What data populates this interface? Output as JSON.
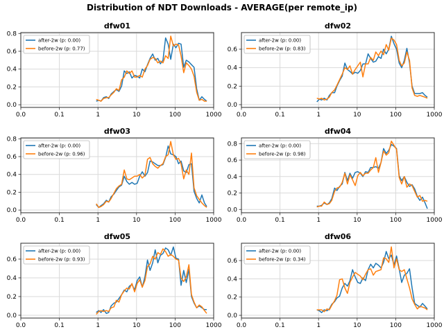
{
  "figure": {
    "title": "Distribution of NDT Downloads - AVERAGE(per remote_ip)",
    "background": "#ffffff"
  },
  "colors": {
    "after": "#1f77b4",
    "before": "#ff7f0e",
    "grid": "#d9d9d9",
    "spine": "#2b2b2b",
    "text": "#000000"
  },
  "chart_data": {
    "type": "line",
    "layout": "3x2-grid",
    "xscale": "symlog",
    "grid": true,
    "legend_position": "upper left",
    "x_tick_labels": [
      "0.0",
      "0.1",
      "1",
      "10",
      "100",
      "1000"
    ],
    "x_values": [
      0.9,
      1.05,
      1.2,
      1.4,
      1.65,
      1.9,
      2.2,
      2.6,
      3.0,
      3.5,
      4.1,
      4.8,
      5.6,
      6.5,
      7.6,
      8.9,
      10.4,
      12.1,
      14.1,
      16.5,
      19.2,
      22.4,
      26.2,
      30.5,
      35.6,
      41.6,
      48.5,
      56.6,
      66.1,
      77.1,
      90,
      105,
      123,
      143,
      167,
      195,
      228,
      266,
      310,
      362,
      423,
      494,
      576,
      660
    ],
    "subplots": [
      {
        "title": "dfw01",
        "y_ticks": [
          "0.0",
          "0.2",
          "0.4",
          "0.6",
          "0.8"
        ],
        "ylim": [
          -0.03,
          0.81
        ],
        "series": [
          {
            "name": "after-2w (p: 0.00)",
            "color": "#1f77b4",
            "y": [
              0.04,
              0.05,
              0.04,
              0.08,
              0.09,
              0.07,
              0.12,
              0.15,
              0.17,
              0.15,
              0.21,
              0.38,
              0.35,
              0.37,
              0.3,
              0.33,
              0.32,
              0.3,
              0.4,
              0.37,
              0.45,
              0.52,
              0.57,
              0.5,
              0.52,
              0.46,
              0.5,
              0.75,
              0.68,
              0.51,
              0.68,
              0.64,
              0.69,
              0.68,
              0.42,
              0.5,
              0.48,
              0.45,
              0.42,
              0.18,
              0.05,
              0.09,
              0.06,
              0.04
            ]
          },
          {
            "name": "before-2w (p: 0.77)",
            "color": "#ff7f0e",
            "y": [
              0.06,
              0.05,
              0.04,
              0.07,
              0.08,
              0.08,
              0.11,
              0.14,
              0.18,
              0.16,
              0.28,
              0.31,
              0.38,
              0.35,
              0.38,
              0.31,
              0.31,
              0.33,
              0.31,
              0.4,
              0.44,
              0.51,
              0.53,
              0.52,
              0.47,
              0.49,
              0.47,
              0.55,
              0.52,
              0.77,
              0.66,
              0.68,
              0.67,
              0.55,
              0.36,
              0.47,
              0.44,
              0.4,
              0.32,
              0.14,
              0.05,
              0.06,
              0.04,
              0.04
            ]
          }
        ]
      },
      {
        "title": "dfw02",
        "y_ticks": [
          "0.0",
          "0.2",
          "0.4",
          "0.6"
        ],
        "ylim": [
          -0.03,
          0.78
        ],
        "series": [
          {
            "name": "after-2w (p: 0.00)",
            "color": "#1f77b4",
            "y": [
              0.03,
              0.06,
              0.05,
              0.07,
              0.05,
              0.1,
              0.13,
              0.13,
              0.2,
              0.26,
              0.31,
              0.45,
              0.38,
              0.36,
              0.33,
              0.35,
              0.34,
              0.37,
              0.44,
              0.44,
              0.55,
              0.5,
              0.46,
              0.47,
              0.52,
              0.5,
              0.6,
              0.55,
              0.6,
              0.74,
              0.66,
              0.6,
              0.45,
              0.4,
              0.48,
              0.61,
              0.45,
              0.2,
              0.12,
              0.12,
              0.12,
              0.13,
              0.1,
              0.08
            ]
          },
          {
            "name": "before-2w (p: 0.83)",
            "color": "#ff7f0e",
            "y": [
              0.07,
              0.06,
              0.07,
              0.05,
              0.06,
              0.08,
              0.13,
              0.16,
              0.21,
              0.27,
              0.33,
              0.4,
              0.38,
              0.42,
              0.33,
              0.38,
              0.42,
              0.46,
              0.3,
              0.44,
              0.44,
              0.51,
              0.48,
              0.57,
              0.53,
              0.58,
              0.54,
              0.65,
              0.59,
              0.72,
              0.7,
              0.65,
              0.48,
              0.42,
              0.45,
              0.57,
              0.48,
              0.18,
              0.1,
              0.09,
              0.1,
              0.09,
              0.08,
              0.07
            ]
          }
        ]
      },
      {
        "title": "dfw03",
        "y_ticks": [
          "0.0",
          "0.2",
          "0.4",
          "0.6",
          "0.8"
        ],
        "ylim": [
          -0.03,
          0.81
        ],
        "series": [
          {
            "name": "after-2w (p: 0.00)",
            "color": "#1f77b4",
            "y": [
              0.06,
              0.03,
              0.05,
              0.07,
              0.11,
              0.09,
              0.15,
              0.18,
              0.22,
              0.26,
              0.28,
              0.38,
              0.32,
              0.29,
              0.31,
              0.29,
              0.3,
              0.38,
              0.43,
              0.38,
              0.42,
              0.55,
              0.54,
              0.52,
              0.5,
              0.5,
              0.51,
              0.59,
              0.72,
              0.63,
              0.62,
              0.6,
              0.52,
              0.55,
              0.44,
              0.42,
              0.51,
              0.52,
              0.21,
              0.13,
              0.08,
              0.17,
              0.08,
              0.04
            ]
          },
          {
            "name": "before-2w (p: 0.96)",
            "color": "#ff7f0e",
            "y": [
              0.07,
              0.03,
              0.04,
              0.06,
              0.1,
              0.09,
              0.13,
              0.19,
              0.24,
              0.27,
              0.29,
              0.45,
              0.35,
              0.34,
              0.36,
              0.38,
              0.38,
              0.4,
              0.36,
              0.39,
              0.57,
              0.59,
              0.52,
              0.49,
              0.47,
              0.5,
              0.52,
              0.6,
              0.62,
              0.77,
              0.62,
              0.57,
              0.58,
              0.52,
              0.35,
              0.45,
              0.4,
              0.64,
              0.25,
              0.16,
              0.12,
              0.08,
              0.05,
              0.03
            ]
          }
        ]
      },
      {
        "title": "dfw04",
        "y_ticks": [
          "0.0",
          "0.2",
          "0.4",
          "0.6",
          "0.8"
        ],
        "ylim": [
          -0.04,
          0.87
        ],
        "series": [
          {
            "name": "after-2w (p: 0.00)",
            "color": "#1f77b4",
            "y": [
              0.04,
              0.04,
              0.05,
              0.08,
              0.06,
              0.08,
              0.13,
              0.26,
              0.23,
              0.28,
              0.31,
              0.45,
              0.35,
              0.44,
              0.38,
              0.45,
              0.46,
              0.44,
              0.4,
              0.46,
              0.45,
              0.51,
              0.51,
              0.52,
              0.5,
              0.57,
              0.74,
              0.68,
              0.72,
              0.79,
              0.77,
              0.74,
              0.41,
              0.35,
              0.4,
              0.33,
              0.28,
              0.3,
              0.25,
              0.16,
              0.11,
              0.15,
              0.08,
              0.01
            ]
          },
          {
            "name": "before-2w (p: 0.98)",
            "color": "#ff7f0e",
            "y": [
              0.03,
              0.04,
              0.04,
              0.09,
              0.06,
              0.07,
              0.11,
              0.22,
              0.26,
              0.27,
              0.33,
              0.44,
              0.31,
              0.42,
              0.36,
              0.29,
              0.41,
              0.45,
              0.41,
              0.44,
              0.44,
              0.48,
              0.51,
              0.63,
              0.45,
              0.57,
              0.71,
              0.66,
              0.69,
              0.83,
              0.78,
              0.73,
              0.39,
              0.31,
              0.4,
              0.27,
              0.31,
              0.29,
              0.22,
              0.15,
              0.17,
              0.1,
              0.11,
              0.1
            ]
          }
        ]
      },
      {
        "title": "dfw05",
        "y_ticks": [
          "0.0",
          "0.2",
          "0.4",
          "0.6"
        ],
        "ylim": [
          -0.03,
          0.77
        ],
        "series": [
          {
            "name": "after-2w (p: 0.00)",
            "color": "#1f77b4",
            "y": [
              0.03,
              0.05,
              0.03,
              0.06,
              0.02,
              0.03,
              0.1,
              0.13,
              0.14,
              0.18,
              0.22,
              0.27,
              0.25,
              0.31,
              0.33,
              0.27,
              0.37,
              0.41,
              0.3,
              0.41,
              0.59,
              0.48,
              0.56,
              0.7,
              0.56,
              0.64,
              0.66,
              0.72,
              0.7,
              0.64,
              0.73,
              0.61,
              0.6,
              0.32,
              0.48,
              0.35,
              0.49,
              0.2,
              0.13,
              0.08,
              0.1,
              0.08,
              0.06,
              0.06
            ]
          },
          {
            "name": "before-2w (p: 0.93)",
            "color": "#ff7f0e",
            "y": [
              0.01,
              0.04,
              0.05,
              0.04,
              0.05,
              0.04,
              0.08,
              0.09,
              0.16,
              0.14,
              0.22,
              0.26,
              0.29,
              0.28,
              0.34,
              0.25,
              0.34,
              0.38,
              0.3,
              0.37,
              0.52,
              0.55,
              0.63,
              0.6,
              0.67,
              0.65,
              0.71,
              0.68,
              0.63,
              0.65,
              0.63,
              0.6,
              0.59,
              0.4,
              0.36,
              0.41,
              0.54,
              0.22,
              0.14,
              0.08,
              0.11,
              0.09,
              0.05,
              0.02
            ]
          }
        ]
      },
      {
        "title": "dfw06",
        "y_ticks": [
          "0.0",
          "0.2",
          "0.4",
          "0.6"
        ],
        "ylim": [
          -0.03,
          0.79
        ],
        "series": [
          {
            "name": "after-2w (p: 0.00)",
            "color": "#1f77b4",
            "y": [
              0.06,
              0.05,
              0.03,
              0.06,
              0.05,
              0.07,
              0.12,
              0.15,
              0.19,
              0.21,
              0.3,
              0.35,
              0.32,
              0.38,
              0.5,
              0.42,
              0.36,
              0.35,
              0.41,
              0.38,
              0.5,
              0.56,
              0.52,
              0.57,
              0.55,
              0.52,
              0.58,
              0.7,
              0.62,
              0.66,
              0.55,
              0.65,
              0.51,
              0.36,
              0.44,
              0.46,
              0.51,
              0.3,
              0.13,
              0.11,
              0.09,
              0.13,
              0.1,
              0.07
            ]
          },
          {
            "name": "before-2w (p: 0.34)",
            "color": "#ff7f0e",
            "y": [
              0.06,
              0.06,
              0.06,
              0.04,
              0.07,
              0.06,
              0.11,
              0.16,
              0.22,
              0.39,
              0.4,
              0.3,
              0.24,
              0.36,
              0.42,
              0.47,
              0.45,
              0.43,
              0.39,
              0.45,
              0.5,
              0.51,
              0.44,
              0.48,
              0.49,
              0.5,
              0.63,
              0.62,
              0.58,
              0.75,
              0.52,
              0.62,
              0.5,
              0.48,
              0.5,
              0.4,
              0.3,
              0.18,
              0.12,
              0.07,
              0.1,
              0.09,
              0.08,
              0.06
            ]
          }
        ]
      }
    ]
  }
}
